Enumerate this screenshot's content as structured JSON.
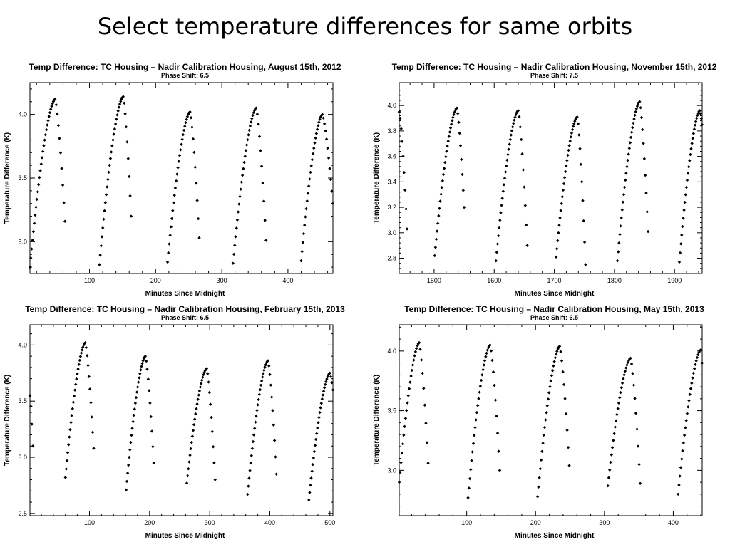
{
  "slide": {
    "title": "Select temperature differences for same orbits"
  },
  "chart_data": [
    {
      "type": "scatter",
      "title": "Temp Difference: TC Housing – Nadir Calibration Housing, August 15th, 2012",
      "subtitle": "Phase Shift:  6.5",
      "xlabel": "Minutes Since Midnight",
      "ylabel": "Temperature Difference (K)",
      "xlim": [
        10,
        468
      ],
      "ylim": [
        2.75,
        4.25
      ],
      "xticks": [
        100,
        200,
        300,
        400
      ],
      "yticks": [
        3.0,
        3.5,
        4.0
      ],
      "ytick_labels": [
        "3.0",
        "3.5",
        "4.0"
      ],
      "cycles": [
        {
          "start": 10,
          "peak_x": 48,
          "peak_y": 4.12,
          "base": 2.8,
          "end_x": 63,
          "end_y": 3.16
        },
        {
          "start": 115,
          "peak_x": 151,
          "peak_y": 4.14,
          "base": 2.82,
          "end_x": 163,
          "end_y": 3.2
        },
        {
          "start": 218,
          "peak_x": 252,
          "peak_y": 4.02,
          "base": 2.84,
          "end_x": 266,
          "end_y": 3.03
        },
        {
          "start": 317,
          "peak_x": 352,
          "peak_y": 4.05,
          "base": 2.83,
          "end_x": 367,
          "end_y": 3.01
        },
        {
          "start": 420,
          "peak_x": 452,
          "peak_y": 4.0,
          "base": 2.85,
          "end_x": 468,
          "end_y": 3.3
        }
      ]
    },
    {
      "type": "scatter",
      "title": "Temp Difference: TC Housing – Nadir Calibration Housing, November 15th, 2012",
      "subtitle": "Phase Shift:  7.5",
      "xlabel": "Minutes Since Midnight",
      "ylabel": "Temperature Difference (K)",
      "xlim": [
        1442,
        1946
      ],
      "ylim": [
        2.68,
        4.18
      ],
      "xticks": [
        1500,
        1600,
        1700,
        1800,
        1900
      ],
      "yticks": [
        2.8,
        3.0,
        3.2,
        3.4,
        3.6,
        3.8,
        4.0
      ],
      "ytick_labels": [
        "2.8",
        "3.0",
        "3.2",
        "3.4",
        "3.6",
        "3.8",
        "4.0"
      ],
      "cycles": [
        {
          "start": 1442,
          "peak_x": 1442,
          "peak_y": 3.95,
          "base": 3.95,
          "end_x": 1455,
          "end_y": 3.03
        },
        {
          "start": 1501,
          "peak_x": 1538,
          "peak_y": 3.98,
          "base": 2.82,
          "end_x": 1550,
          "end_y": 3.2
        },
        {
          "start": 1603,
          "peak_x": 1640,
          "peak_y": 3.96,
          "base": 2.78,
          "end_x": 1655,
          "end_y": 2.9
        },
        {
          "start": 1703,
          "peak_x": 1738,
          "peak_y": 3.91,
          "base": 2.81,
          "end_x": 1752,
          "end_y": 2.75
        },
        {
          "start": 1805,
          "peak_x": 1842,
          "peak_y": 4.03,
          "base": 2.78,
          "end_x": 1856,
          "end_y": 3.01
        },
        {
          "start": 1908,
          "peak_x": 1942,
          "peak_y": 3.96,
          "base": 2.77,
          "end_x": 1946,
          "end_y": 3.85
        }
      ]
    },
    {
      "type": "scatter",
      "title": "Temp Difference: TC Housing – Nadir Calibration Housing, February 15th, 2013",
      "subtitle": "Phase Shift:  6.5",
      "xlabel": "Minutes Since Midnight",
      "ylabel": "Temperature Difference (K)",
      "xlim": [
        1,
        505
      ],
      "ylim": [
        2.48,
        4.18
      ],
      "xticks": [
        100,
        200,
        300,
        400,
        500
      ],
      "yticks": [
        2.5,
        3.0,
        3.5,
        4.0
      ],
      "ytick_labels": [
        "2.5",
        "3.0",
        "3.5",
        "4.0"
      ],
      "cycles": [
        {
          "start": 1,
          "peak_x": 1,
          "peak_y": 3.55,
          "base": 3.55,
          "end_x": 6,
          "end_y": 3.1
        },
        {
          "start": 60,
          "peak_x": 93,
          "peak_y": 4.02,
          "base": 2.82,
          "end_x": 107,
          "end_y": 3.08
        },
        {
          "start": 161,
          "peak_x": 193,
          "peak_y": 3.9,
          "base": 2.71,
          "end_x": 207,
          "end_y": 2.95
        },
        {
          "start": 262,
          "peak_x": 295,
          "peak_y": 3.79,
          "base": 2.77,
          "end_x": 309,
          "end_y": 2.8
        },
        {
          "start": 363,
          "peak_x": 397,
          "peak_y": 3.86,
          "base": 2.67,
          "end_x": 411,
          "end_y": 2.85
        },
        {
          "start": 465,
          "peak_x": 500,
          "peak_y": 3.75,
          "base": 2.62,
          "end_x": 505,
          "end_y": 3.6
        }
      ]
    },
    {
      "type": "scatter",
      "title": "Temp Difference: TC Housing – Nadir Calibration Housing, May 15th, 2013",
      "subtitle": "Phase Shift:  6.5",
      "xlabel": "Minutes Since Midnight",
      "ylabel": "Temperature Difference (K)",
      "xlim": [
        2,
        442
      ],
      "ylim": [
        2.62,
        4.22
      ],
      "xticks": [
        100,
        200,
        300,
        400
      ],
      "yticks": [
        3.0,
        3.5,
        4.0
      ],
      "ytick_labels": [
        "3.0",
        "3.5",
        "4.0"
      ],
      "cycles": [
        {
          "start": 2,
          "peak_x": 31,
          "peak_y": 4.07,
          "base": 2.9,
          "end_x": 44,
          "end_y": 3.06
        },
        {
          "start": 102,
          "peak_x": 134,
          "peak_y": 4.05,
          "base": 2.77,
          "end_x": 148,
          "end_y": 3.0
        },
        {
          "start": 203,
          "peak_x": 235,
          "peak_y": 4.04,
          "base": 2.78,
          "end_x": 249,
          "end_y": 3.04
        },
        {
          "start": 305,
          "peak_x": 338,
          "peak_y": 3.94,
          "base": 2.87,
          "end_x": 352,
          "end_y": 2.89
        },
        {
          "start": 407,
          "peak_x": 440,
          "peak_y": 4.01,
          "base": 2.8,
          "end_x": 442,
          "end_y": 3.9
        }
      ]
    }
  ]
}
